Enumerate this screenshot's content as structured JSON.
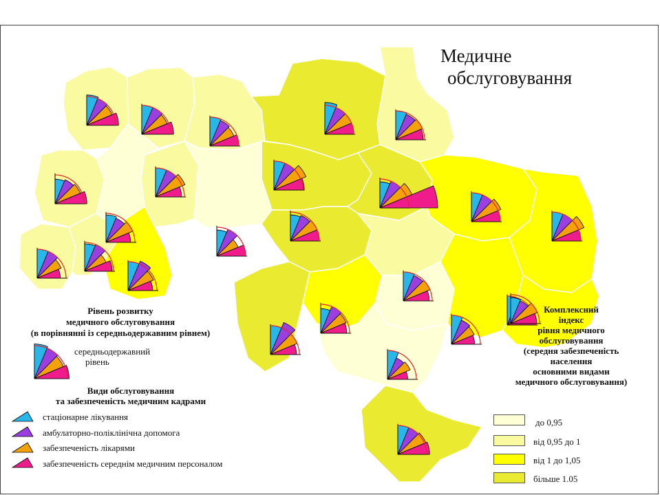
{
  "title": {
    "line1": "Медичне",
    "line2": "обслуговування"
  },
  "development_legend": {
    "heading_lines": [
      "Рівень розвитку",
      "медичного обслуговування",
      "(в порівнянні із середньодержавним рівнем)"
    ],
    "reference_label_lines": [
      "середньодержавний",
      "рівень"
    ]
  },
  "service_types": {
    "heading_lines": [
      "Види обслуговування",
      "та забезпеченість медичним кадрами"
    ],
    "items": [
      {
        "label": "стаціонарне лікування",
        "color": "#29b6e8"
      },
      {
        "label": "амбулаторно-поліклінічна допомога",
        "color": "#9b3fe0"
      },
      {
        "label": "забезпеченість лікарями",
        "color": "#f4a20c"
      },
      {
        "label": "забезпеченість середнім медичним персоналом",
        "color": "#f01c8c"
      }
    ]
  },
  "complex_index": {
    "heading_lines": [
      "Комплексний",
      "індекс",
      "рівня медичного",
      "обслуговування",
      "(середня забезпеченість",
      "населення",
      "основними видами",
      "медичного обслуговування)"
    ],
    "classes": [
      {
        "label": "до 0,95",
        "color": "#ffffd6"
      },
      {
        "label": "від 0,95 до 1",
        "color": "#fafaa0"
      },
      {
        "label": "від 1 до 1,05",
        "color": "#ffff00"
      },
      {
        "label": "більше 1.05",
        "color": "#eaea30"
      }
    ]
  },
  "regions": [
    {
      "cls": 1,
      "values": [
        1.05,
        1.0,
        0.95,
        1.1
      ]
    },
    {
      "cls": 1,
      "values": [
        1.0,
        1.0,
        0.95,
        1.1
      ]
    },
    {
      "cls": 1,
      "values": [
        1.0,
        0.95,
        0.9,
        1.0
      ]
    },
    {
      "cls": 3,
      "values": [
        1.1,
        1.0,
        1.0,
        1.0
      ]
    },
    {
      "cls": 1,
      "values": [
        1.0,
        0.95,
        1.0,
        0.95
      ]
    },
    {
      "cls": 3,
      "values": [
        1.0,
        1.0,
        1.2,
        1.05
      ]
    },
    {
      "cls": 0,
      "values": [
        0.9,
        1.0,
        0.8,
        1.0
      ]
    },
    {
      "cls": 1,
      "values": [
        1.0,
        1.0,
        1.1,
        0.9
      ]
    },
    {
      "cls": 3,
      "values": [
        0.9,
        1.0,
        1.2,
        2.0
      ]
    },
    {
      "cls": 2,
      "values": [
        1.0,
        1.0,
        1.1,
        1.0
      ]
    },
    {
      "cls": 2,
      "values": [
        1.0,
        1.0,
        1.2,
        1.0
      ]
    },
    {
      "cls": 1,
      "values": [
        0.85,
        0.9,
        0.95,
        1.1
      ]
    },
    {
      "cls": 0,
      "values": [
        0.95,
        0.9,
        1.0,
        0.85
      ]
    },
    {
      "cls": 3,
      "values": [
        0.9,
        0.95,
        1.0,
        1.0
      ]
    },
    {
      "cls": 1,
      "values": [
        1.0,
        0.95,
        1.0,
        0.9
      ]
    },
    {
      "cls": 1,
      "values": [
        1.0,
        1.0,
        0.9,
        0.8
      ]
    },
    {
      "cls": 1,
      "values": [
        0.95,
        1.0,
        0.8,
        0.95
      ]
    },
    {
      "cls": 2,
      "values": [
        1.0,
        1.1,
        0.95,
        0.85
      ]
    },
    {
      "cls": 3,
      "values": [
        1.0,
        1.2,
        1.0,
        0.9
      ]
    },
    {
      "cls": 2,
      "values": [
        0.85,
        1.0,
        0.95,
        0.9
      ]
    },
    {
      "cls": 0,
      "values": [
        1.0,
        0.9,
        0.85,
        0.8
      ]
    },
    {
      "cls": 2,
      "values": [
        1.0,
        0.9,
        0.95,
        1.0
      ]
    },
    {
      "cls": 2,
      "values": [
        0.9,
        0.85,
        1.0,
        0.9
      ]
    },
    {
      "cls": 0,
      "values": [
        1.0,
        0.8,
        0.85,
        0.7
      ]
    },
    {
      "cls": 3,
      "values": [
        1.0,
        1.0,
        1.05,
        1.1
      ]
    }
  ]
}
